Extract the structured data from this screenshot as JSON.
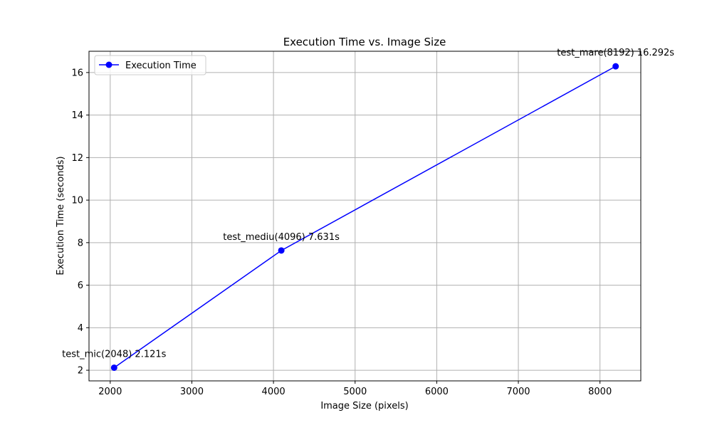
{
  "chart_data": {
    "type": "line",
    "title": "Execution Time vs. Image Size",
    "xlabel": "Image Size (pixels)",
    "ylabel": "Execution Time (seconds)",
    "xlim": [
      1740,
      8500
    ],
    "ylim": [
      1.5,
      17.0
    ],
    "x_ticks": [
      2000,
      3000,
      4000,
      5000,
      6000,
      7000,
      8000
    ],
    "y_ticks": [
      2,
      4,
      6,
      8,
      10,
      12,
      14,
      16
    ],
    "grid": true,
    "legend_position": "top-left",
    "series": [
      {
        "name": "Execution Time",
        "color": "#0000ff",
        "marker": "circle",
        "x": [
          2048,
          4096,
          8192
        ],
        "y": [
          2.121,
          7.631,
          16.292
        ]
      }
    ],
    "annotations": [
      {
        "text": "test_mic(2048) 2.121s",
        "x": 2048,
        "y": 2.121
      },
      {
        "text": "test_mediu(4096) 7.631s",
        "x": 4096,
        "y": 7.631
      },
      {
        "text": "test_mare(8192) 16.292s",
        "x": 8192,
        "y": 16.292
      }
    ]
  }
}
